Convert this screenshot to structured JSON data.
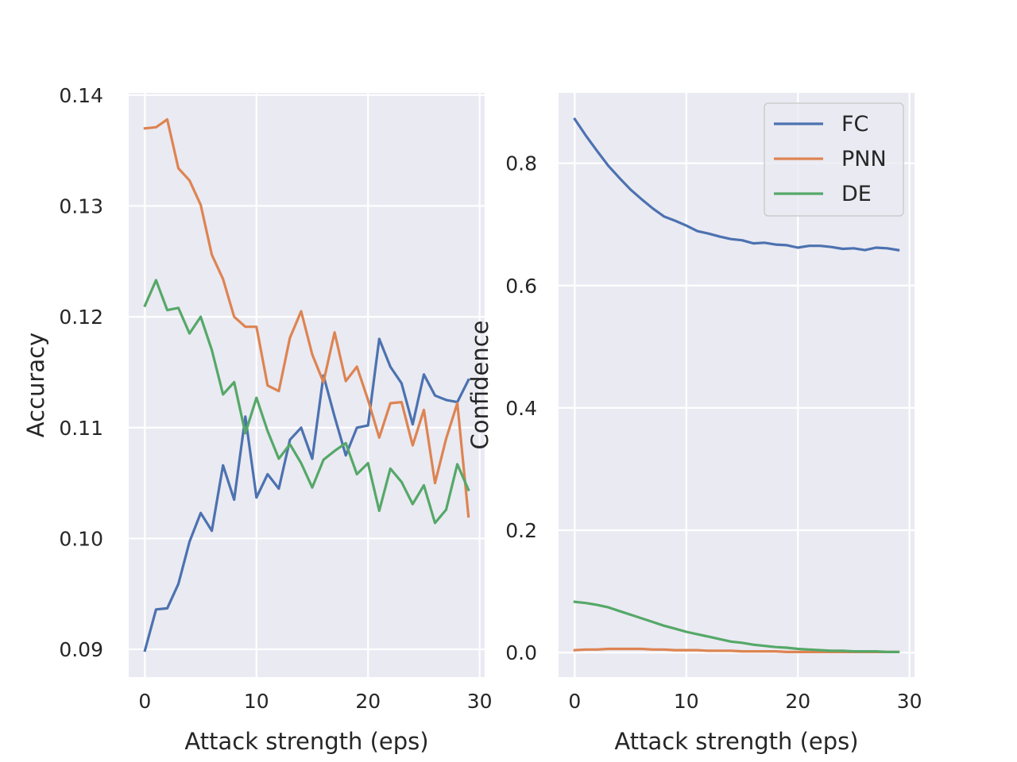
{
  "chart_data": [
    {
      "type": "line",
      "xlabel": "Attack strength (eps)",
      "ylabel": "Accuracy",
      "xlim": [
        -1.45,
        30.45
      ],
      "ylim": [
        0.0875,
        0.1402
      ],
      "xticks": [
        0,
        10,
        20,
        30
      ],
      "xtick_labels": [
        "0",
        "10",
        "20",
        "30"
      ],
      "yticks": [
        0.09,
        0.1,
        0.11,
        0.12,
        0.13,
        0.14
      ],
      "ytick_labels": [
        "0.09",
        "0.10",
        "0.11",
        "0.12",
        "0.13",
        "0.14"
      ],
      "grid": true,
      "x": [
        0,
        1,
        2,
        3,
        4,
        5,
        6,
        7,
        8,
        9,
        10,
        11,
        12,
        13,
        14,
        15,
        16,
        17,
        18,
        19,
        20,
        21,
        22,
        23,
        24,
        25,
        26,
        27,
        28,
        29
      ],
      "series": [
        {
          "name": "FC",
          "color": "#4c72b0",
          "values": [
            0.0899,
            0.0936,
            0.0937,
            0.0959,
            0.0997,
            0.1023,
            0.1007,
            0.1066,
            0.1035,
            0.111,
            0.1037,
            0.1058,
            0.1045,
            0.1089,
            0.11,
            0.1072,
            0.1147,
            0.111,
            0.1075,
            0.11,
            0.1102,
            0.118,
            0.1155,
            0.114,
            0.1103,
            0.1148,
            0.1129,
            0.1125,
            0.1123,
            0.1143
          ]
        },
        {
          "name": "PNN",
          "color": "#dd8452",
          "values": [
            0.137,
            0.1371,
            0.1378,
            0.1334,
            0.1323,
            0.1301,
            0.1256,
            0.1234,
            0.12,
            0.1191,
            0.1191,
            0.1138,
            0.1133,
            0.1181,
            0.1205,
            0.1166,
            0.1141,
            0.1186,
            0.1142,
            0.1155,
            0.1125,
            0.1091,
            0.1122,
            0.1123,
            0.1084,
            0.1116,
            0.105,
            0.109,
            0.1122,
            0.102
          ]
        },
        {
          "name": "DE",
          "color": "#55a868",
          "values": [
            0.121,
            0.1233,
            0.1206,
            0.1208,
            0.1185,
            0.12,
            0.117,
            0.113,
            0.1141,
            0.1095,
            0.1127,
            0.1097,
            0.1072,
            0.1085,
            0.1068,
            0.1046,
            0.1071,
            0.1079,
            0.1086,
            0.1058,
            0.1068,
            0.1025,
            0.1063,
            0.1051,
            0.1031,
            0.1048,
            0.1014,
            0.1026,
            0.1067,
            0.1044
          ]
        }
      ]
    },
    {
      "type": "line",
      "xlabel": "Attack strength (eps)",
      "ylabel": "Confidence",
      "xlim": [
        -1.45,
        30.45
      ],
      "ylim": [
        -0.04,
        0.915
      ],
      "xticks": [
        0,
        10,
        20,
        30
      ],
      "xtick_labels": [
        "0",
        "10",
        "20",
        "30"
      ],
      "yticks": [
        0.0,
        0.2,
        0.4,
        0.6,
        0.8
      ],
      "ytick_labels": [
        "0.0",
        "0.2",
        "0.4",
        "0.6",
        "0.8"
      ],
      "grid": true,
      "legend": {
        "position": "top-right",
        "entries": [
          "FC",
          "PNN",
          "DE"
        ]
      },
      "x": [
        0,
        1,
        2,
        3,
        4,
        5,
        6,
        7,
        8,
        9,
        10,
        11,
        12,
        13,
        14,
        15,
        16,
        17,
        18,
        19,
        20,
        21,
        22,
        23,
        24,
        25,
        26,
        27,
        28,
        29
      ],
      "series": [
        {
          "name": "FC",
          "color": "#4c72b0",
          "values": [
            0.872,
            0.845,
            0.82,
            0.796,
            0.776,
            0.757,
            0.741,
            0.726,
            0.713,
            0.706,
            0.698,
            0.689,
            0.685,
            0.68,
            0.676,
            0.674,
            0.669,
            0.67,
            0.667,
            0.666,
            0.662,
            0.665,
            0.665,
            0.663,
            0.66,
            0.661,
            0.658,
            0.662,
            0.661,
            0.658
          ]
        },
        {
          "name": "PNN",
          "color": "#dd8452",
          "values": [
            0.004,
            0.005,
            0.005,
            0.006,
            0.006,
            0.006,
            0.006,
            0.005,
            0.005,
            0.004,
            0.004,
            0.004,
            0.003,
            0.003,
            0.003,
            0.002,
            0.002,
            0.002,
            0.002,
            0.001,
            0.001,
            0.001,
            0.001,
            0.001,
            0.001,
            0.001,
            0.001,
            0.001,
            0.001,
            0.001
          ]
        },
        {
          "name": "DE",
          "color": "#55a868",
          "values": [
            0.083,
            0.081,
            0.078,
            0.074,
            0.068,
            0.062,
            0.056,
            0.05,
            0.044,
            0.039,
            0.034,
            0.03,
            0.026,
            0.022,
            0.018,
            0.016,
            0.013,
            0.011,
            0.009,
            0.008,
            0.006,
            0.005,
            0.004,
            0.003,
            0.003,
            0.002,
            0.002,
            0.002,
            0.001,
            0.001
          ]
        }
      ]
    }
  ]
}
